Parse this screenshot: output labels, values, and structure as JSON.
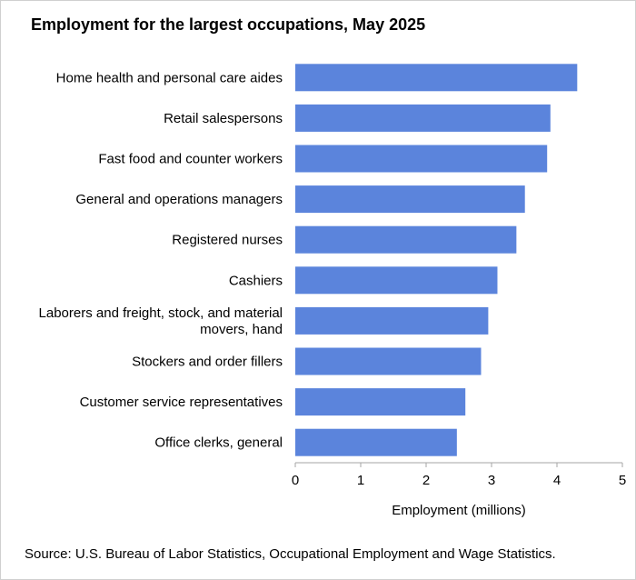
{
  "chart_data": {
    "type": "bar",
    "orientation": "horizontal",
    "title": "Employment for the largest occupations, May 2025",
    "xlabel": "Employment (millions)",
    "ylabel": "",
    "categories": [
      "Home health and personal care aides",
      "Retail salespersons",
      "Fast food and counter workers",
      "General and operations managers",
      "Registered nurses",
      "Cashiers",
      "Laborers and freight, stock, and material movers, hand",
      "Stockers and order fillers",
      "Customer service representatives",
      "Office clerks, general"
    ],
    "category_label_lines": [
      [
        "Home health and personal care aides"
      ],
      [
        "Retail salespersons"
      ],
      [
        "Fast food and counter workers"
      ],
      [
        "General and operations managers"
      ],
      [
        "Registered nurses"
      ],
      [
        "Cashiers"
      ],
      [
        "Laborers and freight, stock, and material",
        "movers, hand"
      ],
      [
        "Stockers and order fillers"
      ],
      [
        "Customer service representatives"
      ],
      [
        "Office clerks, general"
      ]
    ],
    "values": [
      4.31,
      3.9,
      3.85,
      3.51,
      3.38,
      3.09,
      2.95,
      2.84,
      2.6,
      2.47
    ],
    "xlim": [
      0,
      5
    ],
    "xticks": [
      0,
      1,
      2,
      3,
      4,
      5
    ],
    "grid": false,
    "bar_color": "#5b84dc",
    "source": "Source: U.S. Bureau of Labor Statistics, Occupational Employment and Wage Statistics."
  }
}
